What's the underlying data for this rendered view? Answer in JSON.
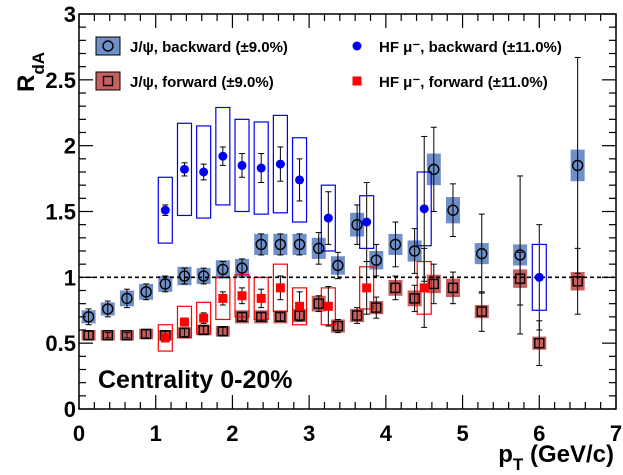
{
  "chart_data": {
    "type": "scatter",
    "title": "",
    "xlabel": "p",
    "xlabel_sub": "T",
    "xlabel_unit": " (GeV/c)",
    "ylabel": "R",
    "ylabel_sub": "dA",
    "xlim": [
      0,
      7
    ],
    "ylim": [
      0,
      3
    ],
    "x_ticks": [
      "0",
      "1",
      "2",
      "3",
      "4",
      "5",
      "6",
      "7"
    ],
    "y_ticks": [
      "0",
      "0.5",
      "1",
      "1.5",
      "2",
      "2.5",
      "3"
    ],
    "reference_line": 1,
    "grid": false,
    "legend_position": "top",
    "annotation": "Centrality 0-20%",
    "colors": {
      "jpsi_backward": "#6f8fc8",
      "jpsi_forward": "#c85f5f",
      "hf_backward": "#0000ee",
      "hf_forward": "#ff0000"
    },
    "series": [
      {
        "name": "J/ψ, backward (±9.0%)",
        "key": "jpsi_backward",
        "marker": "open-circle",
        "sys_style": "filled-box",
        "x": [
          0.125,
          0.375,
          0.625,
          0.875,
          1.125,
          1.375,
          1.625,
          1.875,
          2.125,
          2.375,
          2.625,
          2.875,
          3.125,
          3.375,
          3.625,
          3.875,
          4.125,
          4.375,
          4.625,
          4.875,
          5.25,
          5.75,
          6.5
        ],
        "y": [
          0.7,
          0.76,
          0.84,
          0.89,
          0.95,
          1.01,
          1.01,
          1.06,
          1.07,
          1.25,
          1.25,
          1.25,
          1.22,
          1.09,
          1.4,
          1.13,
          1.25,
          1.2,
          1.82,
          1.51,
          1.18,
          1.17,
          1.85
        ],
        "stat": [
          0.06,
          0.06,
          0.07,
          0.06,
          0.06,
          0.06,
          0.06,
          0.06,
          0.07,
          0.08,
          0.08,
          0.08,
          0.12,
          0.1,
          0.15,
          0.12,
          0.17,
          0.17,
          0.32,
          0.2,
          0.3,
          0.6,
          0.82
        ],
        "sys": [
          0.05,
          0.05,
          0.06,
          0.06,
          0.06,
          0.07,
          0.06,
          0.07,
          0.07,
          0.08,
          0.08,
          0.08,
          0.08,
          0.07,
          0.09,
          0.07,
          0.08,
          0.08,
          0.12,
          0.1,
          0.08,
          0.08,
          0.12
        ]
      },
      {
        "name": "J/ψ, forward (±9.0%)",
        "key": "jpsi_forward",
        "marker": "open-square",
        "sys_style": "filled-box",
        "x": [
          0.125,
          0.375,
          0.625,
          0.875,
          1.125,
          1.375,
          1.625,
          1.875,
          2.125,
          2.375,
          2.625,
          2.875,
          3.125,
          3.375,
          3.625,
          3.875,
          4.125,
          4.375,
          4.625,
          4.875,
          5.25,
          5.75,
          6.0,
          6.5
        ],
        "y": [
          0.56,
          0.56,
          0.56,
          0.57,
          0.56,
          0.58,
          0.6,
          0.59,
          0.7,
          0.7,
          0.7,
          0.71,
          0.8,
          0.63,
          0.71,
          0.77,
          0.92,
          0.84,
          0.95,
          0.92,
          0.74,
          0.99,
          0.5,
          0.97
        ],
        "stat": [
          0.03,
          0.02,
          0.02,
          0.03,
          0.03,
          0.03,
          0.03,
          0.03,
          0.03,
          0.03,
          0.03,
          0.04,
          0.06,
          0.05,
          0.06,
          0.08,
          0.09,
          0.1,
          0.15,
          0.12,
          0.15,
          0.2,
          0.17,
          0.25
        ],
        "sys": [
          0.04,
          0.04,
          0.04,
          0.04,
          0.04,
          0.04,
          0.04,
          0.04,
          0.05,
          0.05,
          0.05,
          0.05,
          0.06,
          0.05,
          0.05,
          0.05,
          0.06,
          0.06,
          0.07,
          0.07,
          0.05,
          0.07,
          0.05,
          0.07
        ]
      },
      {
        "name": "HF μ⁻, backward (±11.0%)",
        "key": "hf_backward",
        "marker": "filled-circle",
        "sys_style": "open-box",
        "x": [
          1.125,
          1.375,
          1.625,
          1.875,
          2.125,
          2.375,
          2.625,
          2.875,
          3.25,
          3.75,
          4.5,
          6.0
        ],
        "y": [
          1.51,
          1.82,
          1.8,
          1.92,
          1.85,
          1.83,
          1.86,
          1.74,
          1.45,
          1.42,
          1.52,
          1.0
        ],
        "stat": [
          0.04,
          0.05,
          0.06,
          0.07,
          0.09,
          0.11,
          0.13,
          0.16,
          0.2,
          0.3,
          0.55,
          0.4
        ],
        "sys": [
          0.25,
          0.35,
          0.35,
          0.37,
          0.35,
          0.35,
          0.37,
          0.32,
          0.25,
          0.2,
          0.28,
          0.25
        ]
      },
      {
        "name": "HF μ⁻, forward (±11.0%)",
        "key": "hf_forward",
        "marker": "filled-square",
        "sys_style": "open-box",
        "x": [
          1.125,
          1.375,
          1.625,
          1.875,
          2.125,
          2.375,
          2.625,
          2.875,
          3.25,
          3.75,
          4.5
        ],
        "y": [
          0.54,
          0.66,
          0.69,
          0.84,
          0.86,
          0.84,
          0.92,
          0.78,
          0.78,
          0.92,
          0.92
        ],
        "stat": [
          0.03,
          0.03,
          0.04,
          0.05,
          0.06,
          0.07,
          0.09,
          0.11,
          0.15,
          0.2,
          0.3
        ],
        "sys": [
          0.1,
          0.12,
          0.12,
          0.16,
          0.16,
          0.16,
          0.18,
          0.14,
          0.14,
          0.16,
          0.2
        ]
      }
    ]
  }
}
